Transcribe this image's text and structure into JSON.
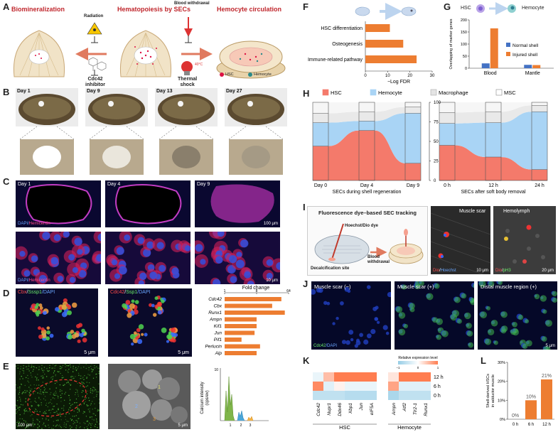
{
  "panelA": {
    "letter": "A",
    "titles": [
      "Biomineralization",
      "Hematopoiesis by SECs",
      "Hemocyte circulation"
    ],
    "radiation": "Radiation",
    "cdc42": [
      "Cdc42",
      "inhibitor"
    ],
    "blood_withdrawal": "Blood withdrawal",
    "thermal": [
      "Thermal",
      "shock"
    ],
    "legend": [
      "HSC",
      "Hemocyte"
    ]
  },
  "panelB": {
    "letter": "B",
    "days": [
      "Day 1",
      "Day 9",
      "Day 13",
      "Day 27"
    ]
  },
  "panelC": {
    "letter": "C",
    "days": [
      "Day 1",
      "Day 4",
      "Day 9"
    ],
    "stain": [
      "DAPI/",
      "Hemicentin"
    ],
    "scale_top": "100 μm",
    "scale_bottom": "10 μm"
  },
  "panelD": {
    "letter": "D",
    "stain1": [
      "Cbx",
      "/",
      "Sssp1",
      "/DAPI"
    ],
    "stain2": [
      "Cdc42",
      "/",
      "Ssp1",
      "/DAPI"
    ],
    "scale": "5 μm",
    "chart_title": "Fold change",
    "ticks": [
      "1",
      "8",
      "64"
    ],
    "genes": [
      "Cdc42",
      "Cbx",
      "Runx1",
      "Ampn",
      "Kif1",
      "Jun",
      "Pif1",
      "Perlucin",
      "Alp"
    ]
  },
  "panelE": {
    "letter": "E",
    "scale1": "100 μm",
    "scale2": "5 μm",
    "ylabel": [
      "Calcium intensity",
      "(cps/ev)"
    ],
    "xticks": [
      "1",
      "2",
      "3"
    ],
    "ymax": "10"
  },
  "panelF": {
    "letter": "F",
    "labels": [
      "HSC differentiation",
      "Osteogenesis",
      "Immune-related pathway"
    ],
    "ticks": [
      "0",
      "10",
      "20",
      "30"
    ],
    "xlabel": "−Log FDR"
  },
  "panelG": {
    "letter": "G",
    "header": [
      "HSC",
      "Hemocyte"
    ],
    "ylabel": "Overlapping of marker genes",
    "yticks": [
      "0",
      "50",
      "100",
      "150",
      "200"
    ],
    "groups": [
      "Blood",
      "Mantle"
    ],
    "legend": [
      "Normal shell",
      "Injured shell"
    ]
  },
  "panelH": {
    "letter": "H",
    "legend": [
      "HSC",
      "Hemocyte",
      "Macrophage",
      "MSC"
    ],
    "yticks": [
      "0",
      "25",
      "50",
      "75",
      "100"
    ],
    "xticks1": [
      "Day 0",
      "Day 4",
      "Day 9"
    ],
    "xticks2": [
      "0 h",
      "12 h",
      "24 h"
    ],
    "xlabel1": "SECs  during shell regeneration",
    "xlabel2": "SECs  after soft body removal"
  },
  "panelI": {
    "letter": "I",
    "title": "Fluorescence dye–based SEC tracking",
    "dye": "Hoechst/Dio dye",
    "site": "Decalcification site",
    "blood": [
      "Blood",
      "withdrawal"
    ],
    "muscle_scar": "Muscle scar",
    "hemolymph": "Hemolymph",
    "stain1": [
      "Dio",
      "/",
      "Hoechst"
    ],
    "stain2": [
      "Dio",
      "/",
      "pH3"
    ],
    "scale1": "10 μm",
    "scale2": "20 μm"
  },
  "panelJ": {
    "letter": "J",
    "labels": [
      "Muscle scar (−)",
      "Muscle scar (+)",
      "Distal muscle region (+)"
    ],
    "stain": [
      "Cdc42",
      "/DAPI"
    ],
    "scale": "5 μm"
  },
  "panelK": {
    "letter": "K",
    "legend_title": "Relative expression level",
    "legend_ticks": [
      "−1",
      "0",
      "1"
    ],
    "rows": [
      "12 h",
      "6 h",
      "0 h"
    ],
    "hsc_genes": [
      "Cdc42",
      "Nupr1",
      "Ddx46",
      "Xbp1",
      "Jun",
      "eIF5A"
    ],
    "hemo_genes": [
      "Ampn",
      "Atf2",
      "Tlr2-1",
      "Runx1"
    ],
    "group_labels": [
      "HSC",
      "Hemocyte"
    ]
  },
  "panelL": {
    "letter": "L",
    "ylabel": [
      "Shell-derived HSCs",
      "in adductor muscle"
    ],
    "yticks": [
      "0%",
      "10%",
      "20%",
      "30%"
    ],
    "cats": [
      "0 h",
      "6 h",
      "12 h"
    ],
    "vals_text": [
      "0%",
      "10%",
      "21%"
    ]
  },
  "chart_data": [
    {
      "type": "bar",
      "panel": "F",
      "categories": [
        "HSC differentiation",
        "Osteogenesis",
        "Immune-related pathway"
      ],
      "values": [
        11,
        17,
        23
      ],
      "xlabel": "−Log FDR",
      "xlim": [
        0,
        30
      ]
    },
    {
      "type": "bar",
      "panel": "G",
      "categories": [
        "Blood",
        "Mantle"
      ],
      "series": [
        {
          "name": "Normal shell",
          "values": [
            20,
            14
          ],
          "color": "#4472c4"
        },
        {
          "name": "Injured shell",
          "values": [
            165,
            13
          ],
          "color": "#ed7d31"
        }
      ],
      "ylabel": "Overlapping of marker genes",
      "ylim": [
        0,
        200
      ]
    },
    {
      "type": "bar",
      "panel": "L",
      "categories": [
        "0 h",
        "6 h",
        "12 h"
      ],
      "values": [
        0,
        10,
        21
      ],
      "ylabel": "Shell-derived HSCs in adductor muscle",
      "ylim": [
        0,
        30
      ]
    },
    {
      "type": "bar",
      "panel": "D",
      "title": "Fold change",
      "categories": [
        "Cdc42",
        "Cbx",
        "Runx1",
        "Ampn",
        "Kif1",
        "Jun",
        "Pif1",
        "Perlucin",
        "Alp"
      ],
      "values": [
        40,
        22,
        50,
        8,
        8,
        7,
        3,
        10,
        8
      ],
      "xscale": "log2",
      "xlim": [
        1,
        64
      ]
    },
    {
      "type": "area",
      "panel": "H",
      "series_names": [
        "HSC",
        "Hemocyte",
        "Macrophage",
        "MSC"
      ],
      "colors": [
        "#f47a6b",
        "#a9d4f5",
        "#e4e4e4",
        "#ffffff"
      ],
      "groups": [
        {
          "x": [
            "Day 0",
            "Day 4",
            "Day 9"
          ],
          "hsc": [
            44,
            64,
            22
          ],
          "hemocyte": [
            30,
            12,
            64
          ],
          "macrophage": [
            12,
            12,
            8
          ],
          "msc": [
            14,
            12,
            6
          ]
        },
        {
          "x": [
            "0 h",
            "12 h",
            "24 h"
          ],
          "hsc": [
            45,
            30,
            14
          ],
          "hemocyte": [
            28,
            44,
            74
          ],
          "macrophage": [
            14,
            14,
            8
          ],
          "msc": [
            13,
            12,
            4
          ]
        }
      ],
      "ylim": [
        0,
        100
      ]
    },
    {
      "type": "heatmap",
      "panel": "K",
      "rows": [
        "12 h",
        "6 h",
        "0 h"
      ],
      "cols": [
        "Cdc42",
        "Nupr1",
        "Ddx46",
        "Xbp1",
        "Jun",
        "eIF5A",
        "Ampn",
        "Atf2",
        "Tlr2-1",
        "Runx1"
      ],
      "values": [
        [
          -0.2,
          0.5,
          1,
          1,
          1,
          1,
          0.2,
          1,
          1,
          1
        ],
        [
          0.9,
          -0.3,
          0.1,
          -0.2,
          -0.2,
          -0.2,
          0.7,
          -0.3,
          -0.3,
          -0.3
        ],
        [
          -0.6,
          -0.6,
          -0.6,
          -0.7,
          -0.7,
          -0.7,
          -0.8,
          -0.6,
          -0.6,
          -0.6
        ]
      ],
      "range": [
        -1,
        1
      ]
    }
  ]
}
